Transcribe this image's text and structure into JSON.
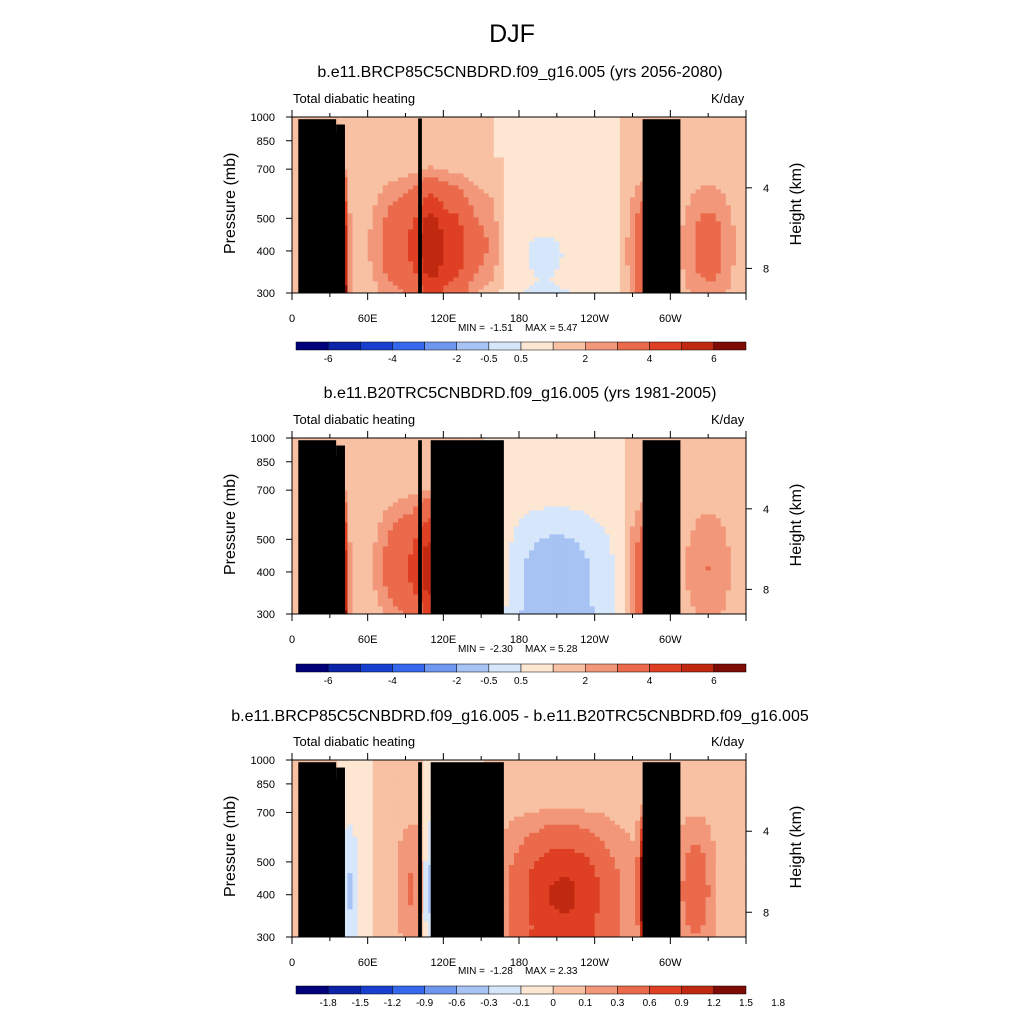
{
  "figure": {
    "title": "DJF",
    "unit_label": "K/day",
    "variable_label": "Total diabatic heating",
    "y_axis_label": "Pressure (mb)",
    "y2_axis_label": "Height (km)",
    "min_label": "MIN =",
    "max_label": "MAX =",
    "colors": {
      "land": "#000000",
      "palette": [
        "#00007a",
        "#0b23a8",
        "#1740d0",
        "#3668ee",
        "#6e98ef",
        "#a7c3f3",
        "#d6e6fb",
        "#fde6d2",
        "#f8c1a3",
        "#f2977a",
        "#ea6a4b",
        "#df3f22",
        "#c02910",
        "#7e0b05"
      ]
    }
  },
  "chart_data": [
    {
      "type": "contour",
      "title": "b.e11.BRCP85C5CNBDRD.f09_g16.005 (yrs 2056-2080)",
      "xlabel": "",
      "ylabel": "Pressure (mb)",
      "x_ticks": [
        "0",
        "60E",
        "120E",
        "180",
        "120W",
        "60W"
      ],
      "y_ticks": [
        "300",
        "400",
        "500",
        "700",
        "850",
        "1000"
      ],
      "y2_ticks": [
        "8",
        "4"
      ],
      "xlim": [
        0,
        360
      ],
      "ylim": [
        1000,
        300
      ],
      "min": "-1.51",
      "max": "5.47",
      "colorbar_labels": [
        "-6",
        "-4",
        "-2",
        "-0.5",
        "0.5",
        "2",
        "4",
        "6"
      ],
      "colorbar_levels": [
        -7,
        -6,
        -5,
        -4,
        -3,
        -2,
        -1,
        -0.5,
        0,
        0.5,
        1,
        2,
        3,
        4,
        5,
        6,
        7
      ],
      "features": [
        {
          "lon": 25,
          "strength": 2.6,
          "width": 5,
          "low_weight": 1.4
        },
        {
          "lon": 40,
          "strength": 4.8,
          "width": 3,
          "low_weight": 1.6
        },
        {
          "lon": 90,
          "strength": 2.2,
          "width": 18,
          "low_weight": 0.4
        },
        {
          "lon": 110,
          "strength": 3.2,
          "width": 8,
          "low_weight": 0.6
        },
        {
          "lon": 130,
          "strength": 2.8,
          "width": 10,
          "low_weight": 0.6
        },
        {
          "lon": 155,
          "strength": 1.4,
          "width": 10,
          "low_weight": 0.4
        },
        {
          "lon": 200,
          "strength": -0.6,
          "width": 40,
          "low_weight": 1.2
        },
        {
          "lon": 280,
          "strength": 2.0,
          "width": 10,
          "low_weight": 1.0
        },
        {
          "lon": 288,
          "strength": 5.4,
          "width": 2.5,
          "low_weight": 1.2
        },
        {
          "lon": 330,
          "strength": 1.6,
          "width": 15,
          "low_weight": 0.6
        }
      ]
    },
    {
      "type": "contour",
      "title": "b.e11.B20TRC5CNBDRD.f09_g16.005 (yrs 1981-2005)",
      "xlabel": "",
      "ylabel": "Pressure (mb)",
      "x_ticks": [
        "0",
        "60E",
        "120E",
        "180",
        "120W",
        "60W"
      ],
      "y_ticks": [
        "300",
        "400",
        "500",
        "700",
        "850",
        "1000"
      ],
      "y2_ticks": [
        "8",
        "4"
      ],
      "xlim": [
        0,
        360
      ],
      "ylim": [
        1000,
        300
      ],
      "min": "-2.30",
      "max": "5.28",
      "colorbar_labels": [
        "-6",
        "-4",
        "-2",
        "-0.5",
        "0.5",
        "2",
        "4",
        "6"
      ],
      "colorbar_levels": [
        -7,
        -6,
        -5,
        -4,
        -3,
        -2,
        -1,
        -0.5,
        0,
        0.5,
        1,
        2,
        3,
        4,
        5,
        6,
        7
      ],
      "features": [
        {
          "lon": 25,
          "strength": 2.2,
          "width": 5,
          "low_weight": 1.4
        },
        {
          "lon": 40,
          "strength": 4.6,
          "width": 3,
          "low_weight": 1.6
        },
        {
          "lon": 90,
          "strength": 2.2,
          "width": 16,
          "low_weight": 0.4
        },
        {
          "lon": 110,
          "strength": 3.0,
          "width": 8,
          "low_weight": 0.6
        },
        {
          "lon": 130,
          "strength": 3.0,
          "width": 9,
          "low_weight": 0.6
        },
        {
          "lon": 155,
          "strength": 1.2,
          "width": 10,
          "low_weight": 0.4
        },
        {
          "lon": 210,
          "strength": -1.5,
          "width": 35,
          "low_weight": 1.3
        },
        {
          "lon": 280,
          "strength": 2.0,
          "width": 10,
          "low_weight": 1.0
        },
        {
          "lon": 288,
          "strength": 5.2,
          "width": 2.5,
          "low_weight": 1.2
        },
        {
          "lon": 330,
          "strength": 1.2,
          "width": 15,
          "low_weight": 0.6
        }
      ]
    },
    {
      "type": "contour",
      "title": "b.e11.BRCP85C5CNBDRD.f09_g16.005 - b.e11.B20TRC5CNBDRD.f09_g16.005",
      "xlabel": "",
      "ylabel": "Pressure (mb)",
      "x_ticks": [
        "0",
        "60E",
        "120E",
        "180",
        "120W",
        "60W"
      ],
      "y_ticks": [
        "300",
        "400",
        "500",
        "700",
        "850",
        "1000"
      ],
      "y2_ticks": [
        "8",
        "4"
      ],
      "xlim": [
        0,
        360
      ],
      "ylim": [
        1000,
        300
      ],
      "min": "-1.28",
      "max": "2.33",
      "colorbar_labels": [
        "-1.8",
        "-1.5",
        "-1.2",
        "-0.9",
        "-0.6",
        "-0.3",
        "-0.1",
        "0",
        "0.1",
        "0.3",
        "0.6",
        "0.9",
        "1.2",
        "1.5",
        "1.8"
      ],
      "colorbar_levels": [
        -2.1,
        -1.8,
        -1.5,
        -1.2,
        -0.9,
        -0.6,
        -0.3,
        -0.1,
        0,
        0.1,
        0.3,
        0.6,
        0.9,
        1.2,
        1.5,
        1.8,
        2.1
      ],
      "features": [
        {
          "lon": 20,
          "strength": 0.5,
          "width": 6,
          "low_weight": 0.8
        },
        {
          "lon": 45,
          "strength": -0.4,
          "width": 5,
          "low_weight": 0.6
        },
        {
          "lon": 95,
          "strength": 0.4,
          "width": 8,
          "low_weight": 0.4
        },
        {
          "lon": 112,
          "strength": -0.5,
          "width": 6,
          "low_weight": 0.5
        },
        {
          "lon": 128,
          "strength": -1.2,
          "width": 6,
          "low_weight": 0.3
        },
        {
          "lon": 150,
          "strength": -0.5,
          "width": 10,
          "low_weight": 0.3
        },
        {
          "lon": 215,
          "strength": 1.1,
          "width": 30,
          "low_weight": 1.0
        },
        {
          "lon": 280,
          "strength": 2.2,
          "width": 3,
          "low_weight": 0.5
        },
        {
          "lon": 320,
          "strength": 0.6,
          "width": 10,
          "low_weight": 0.5
        }
      ]
    }
  ]
}
